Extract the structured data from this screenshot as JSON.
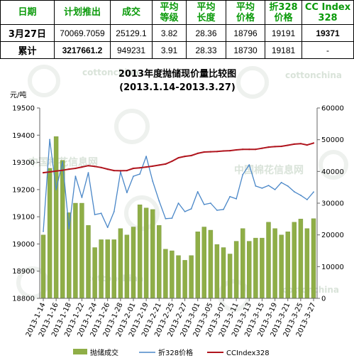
{
  "table": {
    "headers": [
      [
        "日期"
      ],
      [
        "计划推出"
      ],
      [
        "成交"
      ],
      [
        "平均",
        "等级"
      ],
      [
        "平均",
        "长度"
      ],
      [
        "平均",
        "价格"
      ],
      [
        "折328",
        "价格"
      ],
      [
        "CC Index",
        "328"
      ]
    ],
    "rows": [
      [
        "3月27日",
        "70069.7059",
        "25129.1",
        "3.82",
        "28.36",
        "18796",
        "19191",
        "19371"
      ],
      [
        "累计",
        "3217661.2",
        "949231",
        "3.91",
        "28.33",
        "18730",
        "19181",
        "-"
      ]
    ]
  },
  "chart_data": {
    "type": "bar",
    "title": "2013年度抛储现价量比较图",
    "subtitle": "(2013.1.14-2013.3.27)",
    "ylabel": "元/吨",
    "ylim_left": [
      18800,
      19500
    ],
    "yticks_left": [
      18800,
      18900,
      19000,
      19100,
      19200,
      19300,
      19400,
      19500
    ],
    "ylim_right": [
      0,
      60000
    ],
    "yticks_right": [
      0,
      10000,
      20000,
      30000,
      40000,
      50000,
      60000
    ],
    "categories": [
      "2013-1-14",
      "",
      "2013-1-16",
      "",
      "2013-1-18",
      "",
      "2013-1-22",
      "",
      "2013-1-24",
      "",
      "2013-1-26",
      "",
      "2013-1-28",
      "",
      "2013-2-01",
      "",
      "2013-2-19",
      "",
      "2013-2-21",
      "",
      "2013-2-25",
      "",
      "2013-2-27",
      "",
      "2013-3-01",
      "",
      "2013-3-05",
      "",
      "2013-3-07",
      "",
      "2013-3-11",
      "",
      "2013-3-13",
      "",
      "2013-3-15",
      "",
      "2013-3-19",
      "",
      "2013-3-21",
      "",
      "2013-3-25",
      "",
      "2013-3-27"
    ],
    "series": [
      {
        "name": "抛储成交",
        "type": "bar",
        "axis": "right",
        "color": "#8fae47",
        "values": [
          20000,
          41000,
          51000,
          43500,
          27000,
          30000,
          30000,
          23000,
          16000,
          18500,
          18500,
          18500,
          22000,
          20000,
          22500,
          29500,
          28500,
          28000,
          23000,
          15500,
          15000,
          13500,
          12000,
          13500,
          21000,
          22500,
          21500,
          17000,
          16000,
          14000,
          18000,
          22000,
          18000,
          19000,
          19000,
          24000,
          22000,
          20000,
          21000,
          24000,
          25000,
          22000,
          25129
        ]
      },
      {
        "name": "折328价格",
        "type": "line",
        "axis": "left",
        "color": "#4a87c8",
        "values": [
          19046,
          19384,
          19200,
          19302,
          19056,
          19249,
          19171,
          19262,
          19108,
          19113,
          19061,
          19119,
          19265,
          19189,
          19249,
          19257,
          19322,
          19231,
          19158,
          19093,
          19095,
          19150,
          19119,
          19129,
          19192,
          19145,
          19150,
          19124,
          19127,
          19174,
          19166,
          19255,
          19291,
          19213,
          19205,
          19215,
          19200,
          19226,
          19213,
          19192,
          19179,
          19163,
          19191
        ]
      },
      {
        "name": "CCIndex328",
        "type": "line",
        "axis": "left",
        "color": "#b0151e",
        "values": [
          19262,
          19265,
          19268,
          19271,
          19275,
          19278,
          19283,
          19288,
          19285,
          19281,
          19275,
          19270,
          19269,
          19270,
          19278,
          19280,
          19283,
          19286,
          19290,
          19294,
          19304,
          19317,
          19322,
          19325,
          19333,
          19338,
          19339,
          19340,
          19342,
          19343,
          19346,
          19348,
          19348,
          19348,
          19352,
          19356,
          19358,
          19359,
          19363,
          19367,
          19369,
          19364,
          19371
        ]
      }
    ],
    "legend": "bottom",
    "grid": false,
    "axis_color": "#666666"
  },
  "watermark": {
    "en": "cottonchina",
    "cn": "中国棉花信息网"
  }
}
